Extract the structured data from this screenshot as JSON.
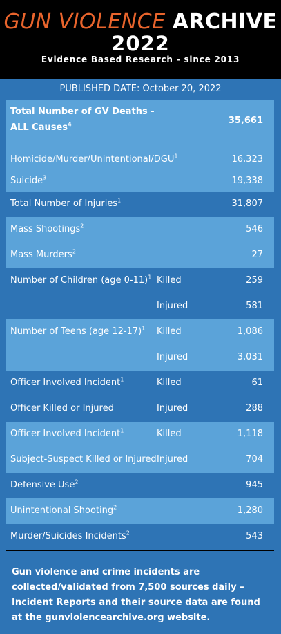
{
  "header": {
    "title_part1": "GUN VIOLENCE",
    "title_part2": "ARCHIVE",
    "year": "2022",
    "subtitle": "Evidence Based Research - since 2013"
  },
  "published": "PUBLISHED DATE: October 20, 2022",
  "rows": [
    {
      "label": "Total Number of GV Deaths -",
      "label2": "ALL Causes",
      "sup": "4",
      "sub": "",
      "value": "35,661"
    },
    {
      "label": "Homicide/Murder/Unintentional/DGU",
      "sup": "1",
      "sub": "",
      "value": "16,323"
    },
    {
      "label": "Suicide",
      "sup": "3",
      "sub": "",
      "value": "19,338"
    },
    {
      "label": "Total Number of Injuries",
      "sup": "1",
      "sub": "",
      "value": "31,807"
    },
    {
      "label": "Mass Shootings",
      "sup": "2",
      "sub": "",
      "value": "546"
    },
    {
      "label": "Mass Murders",
      "sup": "2",
      "sub": "",
      "value": "27"
    },
    {
      "label": "Number of Children (age 0-11)",
      "sup": "1",
      "sub": "Killed",
      "value": "259"
    },
    {
      "label": "",
      "sup": "",
      "sub": "Injured",
      "value": "581"
    },
    {
      "label": "Number of Teens (age 12-17)",
      "sup": "1",
      "sub": "Killed",
      "value": "1,086"
    },
    {
      "label": "",
      "sup": "",
      "sub": "Injured",
      "value": "3,031"
    },
    {
      "label": "Officer Involved Incident",
      "sup": "1",
      "sub": "Killed",
      "value": "61"
    },
    {
      "label": "Officer Killed or Injured",
      "sup": "",
      "sub": "Injured",
      "value": "288"
    },
    {
      "label": "Officer Involved Incident",
      "sup": "1",
      "sub": "Killed",
      "value": "1,118"
    },
    {
      "label": "Subject-Suspect Killed or Injured",
      "sup": "",
      "sub": "Injured",
      "value": "704"
    },
    {
      "label": "Defensive Use",
      "sup": "2",
      "sub": "",
      "value": "945"
    },
    {
      "label": "Unintentional Shooting",
      "sup": "2",
      "sub": "",
      "value": "1,280"
    },
    {
      "label": "Murder/Suicides Incidents",
      "sup": "2",
      "sub": "",
      "value": "543"
    }
  ],
  "footer": "Gun violence  and crime incidents are collected/validated from 7,500 sources daily – Incident Reports and their source data are found at the gunviolencearchive.org website.",
  "colors": {
    "accent": "#e8642c",
    "background": "#2e74b5",
    "light_band": "#5ba3d9",
    "header_bg": "#000000"
  }
}
